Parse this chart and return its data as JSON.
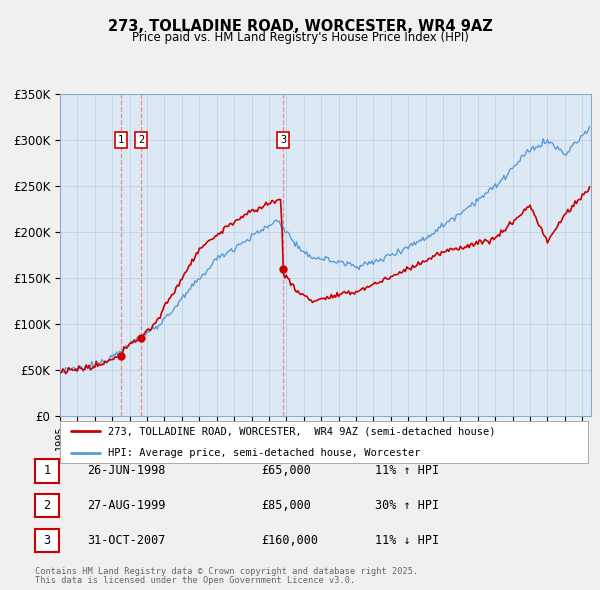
{
  "title": "273, TOLLADINE ROAD, WORCESTER, WR4 9AZ",
  "subtitle": "Price paid vs. HM Land Registry's House Price Index (HPI)",
  "ylim": [
    0,
    350000
  ],
  "yticks": [
    0,
    50000,
    100000,
    150000,
    200000,
    250000,
    300000,
    350000
  ],
  "ytick_labels": [
    "£0",
    "£50K",
    "£100K",
    "£150K",
    "£200K",
    "£250K",
    "£300K",
    "£350K"
  ],
  "hpi_color": "#5b9bd5",
  "price_color": "#cc0000",
  "vline_color": "#e88080",
  "background_color": "#f0f0f0",
  "plot_bg_color": "#dce9f5",
  "grid_color": "#b8cfe0",
  "xlim_left": 1995.0,
  "xlim_right": 2025.5,
  "transactions": [
    {
      "label": "1",
      "date_num": 1998.49,
      "price": 65000,
      "pct": "11%",
      "dir": "↑",
      "date_str": "26-JUN-1998"
    },
    {
      "label": "2",
      "date_num": 1999.66,
      "price": 85000,
      "pct": "30%",
      "dir": "↑",
      "date_str": "27-AUG-1999"
    },
    {
      "label": "3",
      "date_num": 2007.83,
      "price": 160000,
      "pct": "11%",
      "dir": "↓",
      "date_str": "31-OCT-2007"
    }
  ],
  "legend_price_label": "273, TOLLADINE ROAD, WORCESTER,  WR4 9AZ (semi-detached house)",
  "legend_hpi_label": "HPI: Average price, semi-detached house, Worcester",
  "footer1": "Contains HM Land Registry data © Crown copyright and database right 2025.",
  "footer2": "This data is licensed under the Open Government Licence v3.0."
}
